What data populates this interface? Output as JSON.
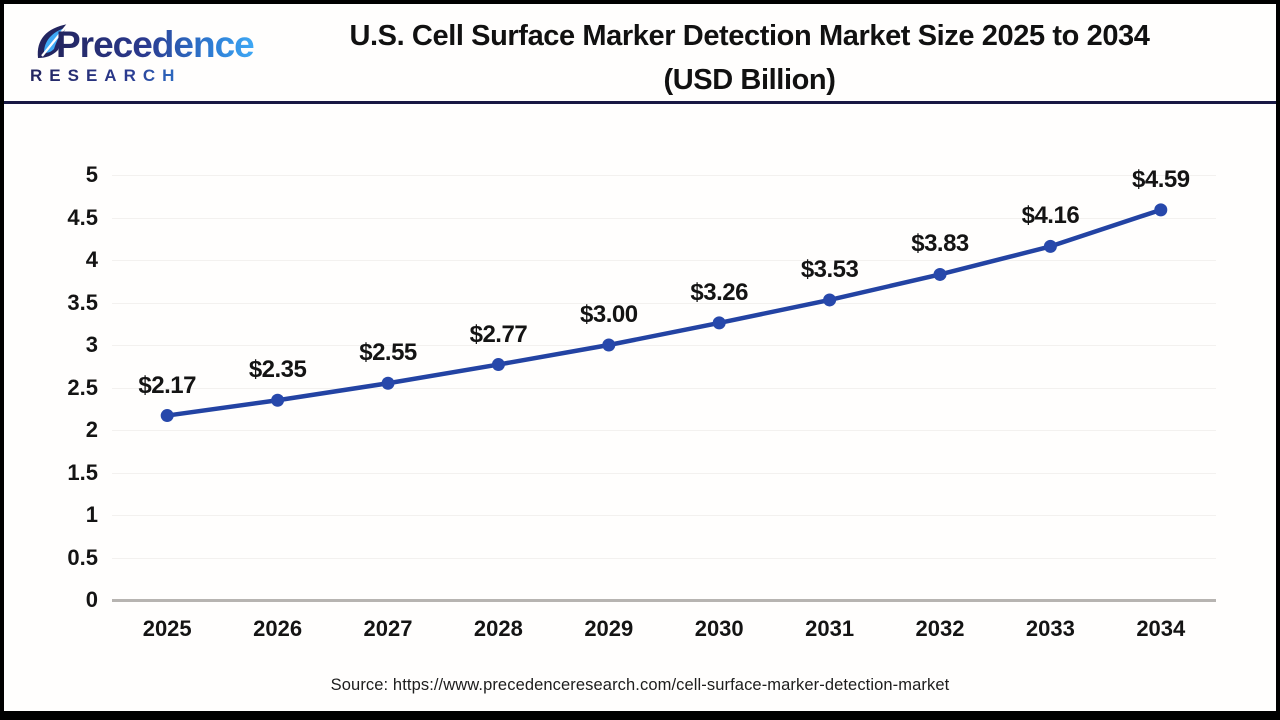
{
  "header": {
    "logo_line1": "Precedence",
    "logo_line2": "RESEARCH",
    "title_line1": "U.S. Cell Surface Marker Detection Market Size 2025 to 2034",
    "title_line2": "(USD Billion)"
  },
  "chart_data": {
    "type": "line",
    "title": "U.S. Cell Surface Marker Detection Market Size 2025 to 2034 (USD Billion)",
    "categories": [
      "2025",
      "2026",
      "2027",
      "2028",
      "2029",
      "2030",
      "2031",
      "2032",
      "2033",
      "2034"
    ],
    "series": [
      {
        "name": "U.S. Cell Surface Marker Detection Market Size (USD Billion)",
        "values": [
          2.17,
          2.35,
          2.55,
          2.77,
          3.0,
          3.26,
          3.53,
          3.83,
          4.16,
          4.59
        ]
      }
    ],
    "point_labels": [
      "$2.17",
      "$2.35",
      "$2.55",
      "$2.77",
      "$3.00",
      "$3.26",
      "$3.53",
      "$3.83",
      "$4.16",
      "$4.59"
    ],
    "xlabel": "",
    "ylabel": "",
    "ylim": [
      0,
      5
    ],
    "y_ticks": [
      0,
      0.5,
      1,
      1.5,
      2,
      2.5,
      3,
      3.5,
      4,
      4.5,
      5
    ],
    "y_tick_labels": [
      "0",
      "0.5",
      "1",
      "1.5",
      "2",
      "2.5",
      "3",
      "3.5",
      "4",
      "4.5",
      "5"
    ],
    "grid": "horizontal-faint",
    "legend": "none",
    "line_color": "#2343a3",
    "marker_color": "#2748ab"
  },
  "footer": {
    "source_text": "Source: https://www.precedenceresearch.com/cell-surface-marker-detection-market"
  },
  "colors": {
    "accent_navy": "#181843",
    "grid_faint": "#f3f1ef",
    "axis_gray": "#b7b4b1",
    "text_dark": "#141414"
  }
}
